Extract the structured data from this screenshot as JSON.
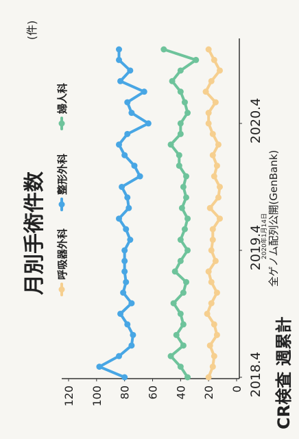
{
  "chart_data": {
    "type": "line",
    "title": "月別手術件数",
    "ylabel": "(件)",
    "ylim": [
      0,
      120
    ],
    "yticks": [
      0,
      20,
      40,
      60,
      80,
      100,
      120
    ],
    "xtick_labels": [
      "2018.4",
      "2019.4",
      "2020.4"
    ],
    "xtick_index": [
      0,
      12,
      24
    ],
    "x": [
      "2018.4",
      "2018.5",
      "2018.6",
      "2018.7",
      "2018.8",
      "2018.9",
      "2018.10",
      "2018.11",
      "2018.12",
      "2019.1",
      "2019.2",
      "2019.3",
      "2019.4",
      "2019.5",
      "2019.6",
      "2019.7",
      "2019.8",
      "2019.9",
      "2019.10",
      "2019.11",
      "2019.12",
      "2020.1",
      "2020.2",
      "2020.3",
      "2020.4",
      "2020.5",
      "2020.6",
      "2020.7",
      "2020.8",
      "2020.9",
      "2020.10",
      "2020.11"
    ],
    "series": [
      {
        "name": "呼吸器外科",
        "color": "#f6cf8f",
        "values": [
          20,
          17,
          16,
          19,
          14,
          16,
          21,
          18,
          14,
          18,
          20,
          15,
          18,
          17,
          17,
          12,
          19,
          13,
          12,
          16,
          14,
          17,
          13,
          17,
          20,
          20,
          15,
          22,
          18,
          12,
          16,
          20
        ]
      },
      {
        "name": "整形外科",
        "color": "#48a6e4",
        "values": [
          80,
          98,
          84,
          75,
          74,
          78,
          83,
          75,
          81,
          79,
          80,
          80,
          80,
          76,
          79,
          84,
          77,
          78,
          82,
          69,
          73,
          80,
          84,
          78,
          63,
          75,
          78,
          66,
          83,
          76,
          84,
          84
        ]
      },
      {
        "name": "婦人科",
        "color": "#6ec39b",
        "values": [
          35,
          40,
          47,
          38,
          43,
          38,
          40,
          45,
          38,
          36,
          44,
          40,
          35,
          40,
          37,
          35,
          39,
          36,
          38,
          36,
          41,
          41,
          47,
          40,
          40,
          35,
          37,
          40,
          46,
          40,
          29,
          52
        ]
      }
    ],
    "legend_position": "top",
    "grid": false,
    "frame": "left and bottom axes only"
  },
  "page": {
    "bottom_title": "CR検査 週累計",
    "date_note": "2020年1月14日",
    "source": "全ゲノム配列公開(GenBank)"
  }
}
